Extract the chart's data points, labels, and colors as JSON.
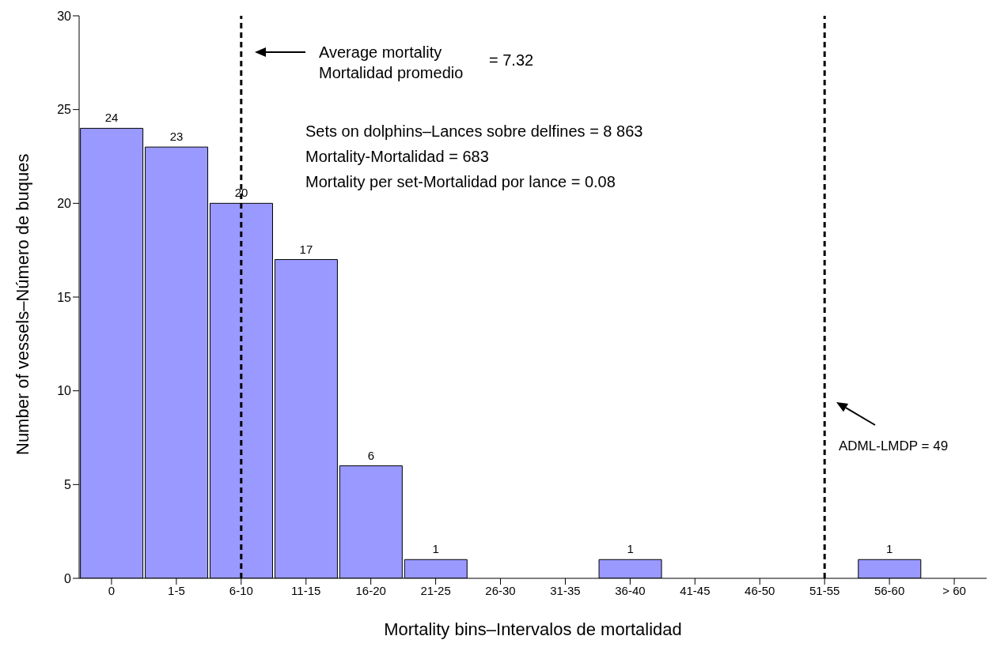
{
  "chart_data": {
    "type": "bar",
    "xlabel": "Mortality bins–Intervalos de mortalidad",
    "ylabel": "Number of vessels–Número de buques",
    "categories": [
      "0",
      "1-5",
      "6-10",
      "11-15",
      "16-20",
      "21-25",
      "26-30",
      "31-35",
      "36-40",
      "41-45",
      "46-50",
      "51-55",
      "56-60",
      "> 60"
    ],
    "values": [
      24,
      23,
      20,
      17,
      6,
      1,
      0,
      0,
      1,
      0,
      0,
      0,
      1,
      0
    ],
    "value_labels": [
      "24",
      "23",
      "20",
      "17",
      "6",
      "1",
      null,
      null,
      "1",
      null,
      null,
      null,
      "1",
      null
    ],
    "color": "#9999ff",
    "ylim": [
      0,
      30
    ],
    "yticks": [
      0,
      5,
      10,
      15,
      20,
      25,
      30
    ],
    "grid": false,
    "legend": false,
    "ref_lines": [
      {
        "axis": "x",
        "value": "6-10",
        "label": null,
        "color": "#000000",
        "line_style": "dashed"
      },
      {
        "axis": "x",
        "value": "51-55",
        "label": null,
        "color": "#000000",
        "line_style": "dashed"
      }
    ],
    "annotations": [
      "Average mortality",
      "Mortalidad promedio",
      "= 7.32",
      "Sets on dolphins–Lances sobre delfines = 8 863",
      "Mortality-Mortalidad = 683",
      "Mortality per set-Mortalidad por lance = 0.08",
      "ADML-LMDP = 49"
    ]
  }
}
